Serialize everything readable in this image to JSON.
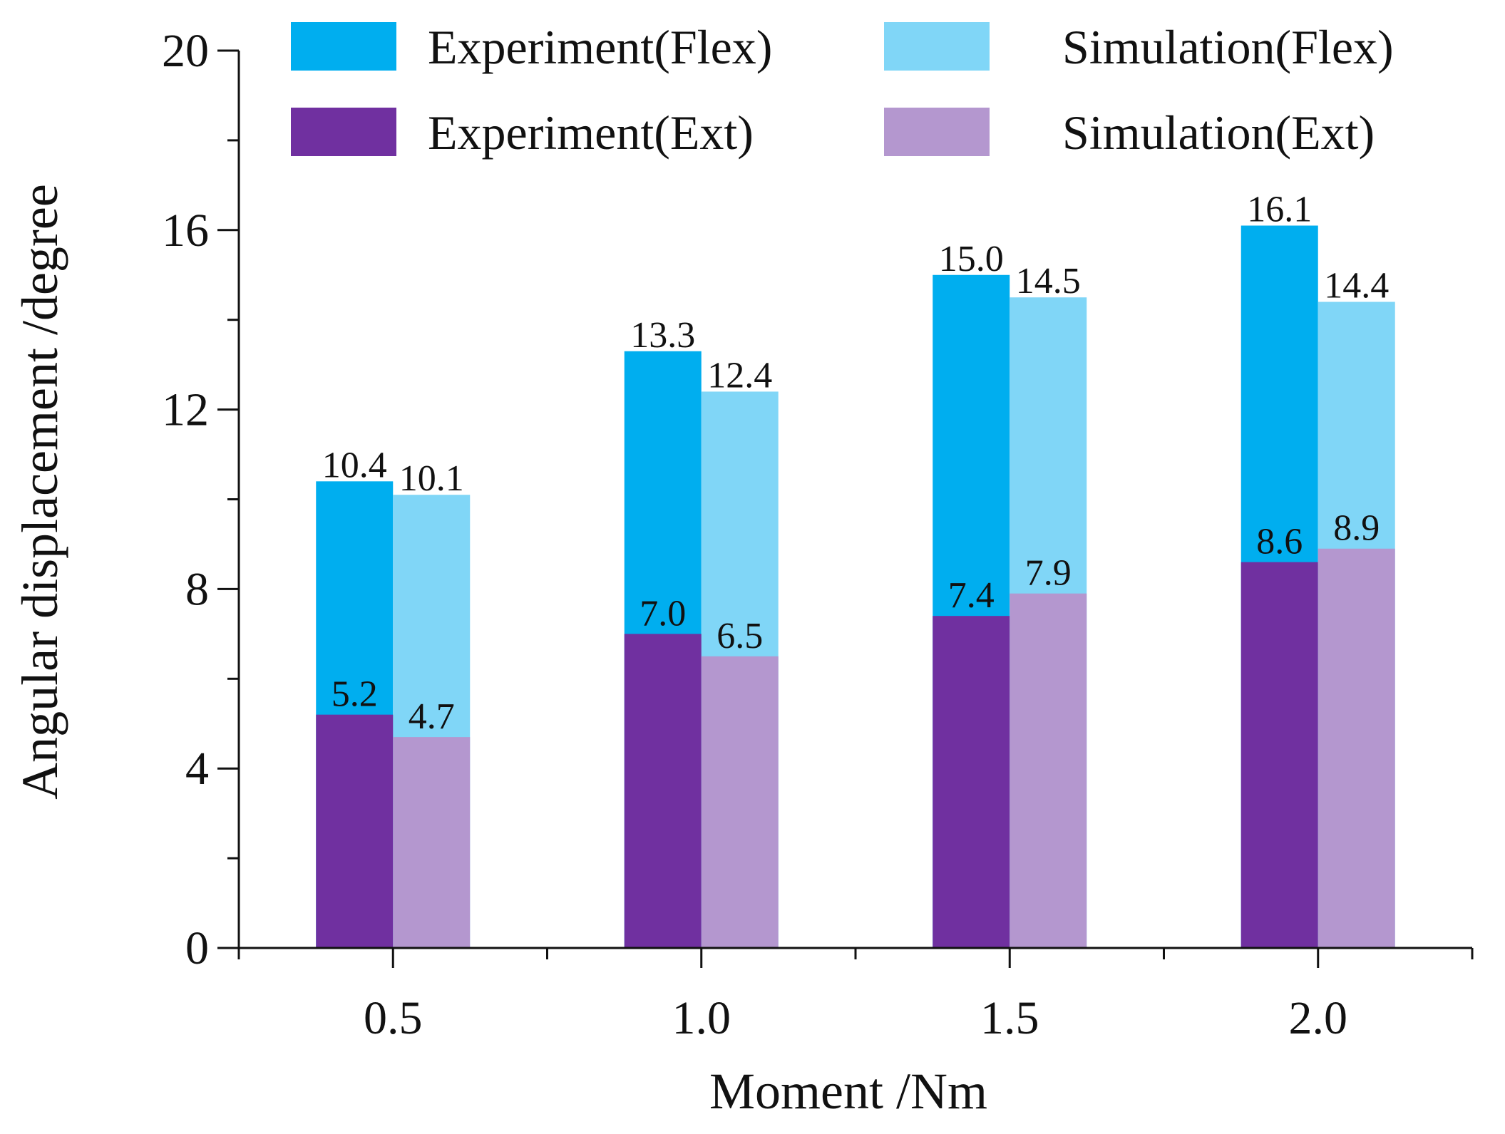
{
  "chart_data": {
    "type": "bar",
    "subtype": "stacked-overlay-grouped",
    "title": "",
    "xlabel": "Moment /Nm",
    "ylabel": "Angular displacement /degree",
    "categories": [
      "0.5",
      "1.0",
      "1.5",
      "2.0"
    ],
    "ylim": [
      0,
      20
    ],
    "yticks": [
      0,
      4,
      8,
      12,
      16,
      20
    ],
    "yticks_text": [
      "0",
      "4",
      "8",
      "12",
      "16",
      "20"
    ],
    "grid": false,
    "legend_position": "top",
    "series": [
      {
        "name": "Experiment(Flex)",
        "group": "Experiment",
        "kind": "Flex",
        "color": "#00AEEF",
        "values": [
          10.4,
          13.3,
          15.0,
          16.1
        ],
        "labels": [
          "10.4",
          "13.3",
          "15.0",
          "16.1"
        ]
      },
      {
        "name": "Simulation(Flex)",
        "group": "Simulation",
        "kind": "Flex",
        "color": "#80D6F7",
        "values": [
          10.1,
          12.4,
          14.5,
          14.4
        ],
        "labels": [
          "10.1",
          "12.4",
          "14.5",
          "14.4"
        ]
      },
      {
        "name": "Experiment(Ext)",
        "group": "Experiment",
        "kind": "Ext",
        "color": "#7030A0",
        "values": [
          5.2,
          7.0,
          7.4,
          8.6
        ],
        "labels": [
          "5.2",
          "7.0",
          "7.4",
          "8.6"
        ]
      },
      {
        "name": "Simulation(Ext)",
        "group": "Simulation",
        "kind": "Ext",
        "color": "#B497CF",
        "values": [
          4.7,
          6.5,
          7.9,
          8.9
        ],
        "labels": [
          "4.7",
          "6.5",
          "7.9",
          "8.9"
        ]
      }
    ]
  }
}
